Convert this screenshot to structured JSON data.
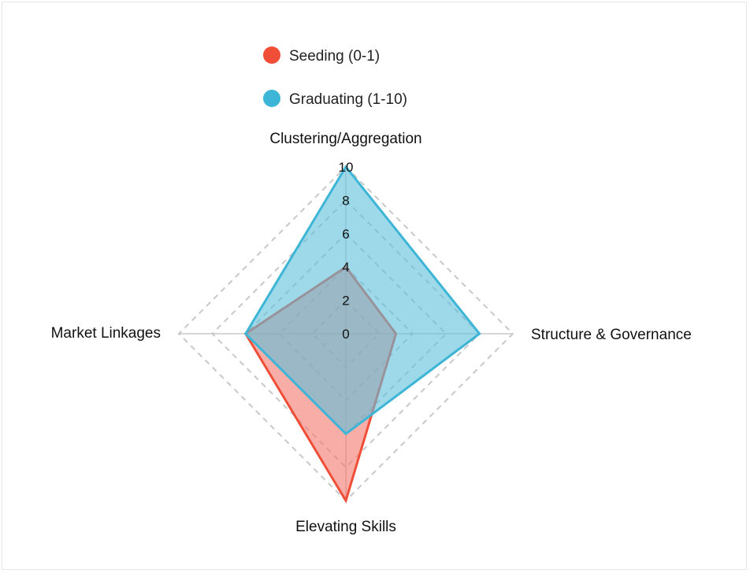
{
  "chart_data": {
    "type": "radar",
    "axes": [
      "Clustering/Aggregation",
      "Structure & Governance",
      "Elevating Skills",
      "Market Linkages"
    ],
    "r_ticks": [
      "0",
      "2",
      "4",
      "6",
      "8",
      "10"
    ],
    "r_range": [
      0,
      10
    ],
    "grid": "dashed polygons",
    "legend_position": "top",
    "series": [
      {
        "name": "Seeding (0-1)",
        "values": [
          4,
          3,
          10,
          6
        ],
        "color": "#f04e37",
        "fill": "#f4776a"
      },
      {
        "name": "Graduating (1-10)",
        "values": [
          10,
          8,
          6,
          6
        ],
        "color": "#3db5d6",
        "fill": "#5dbfdc"
      }
    ]
  }
}
